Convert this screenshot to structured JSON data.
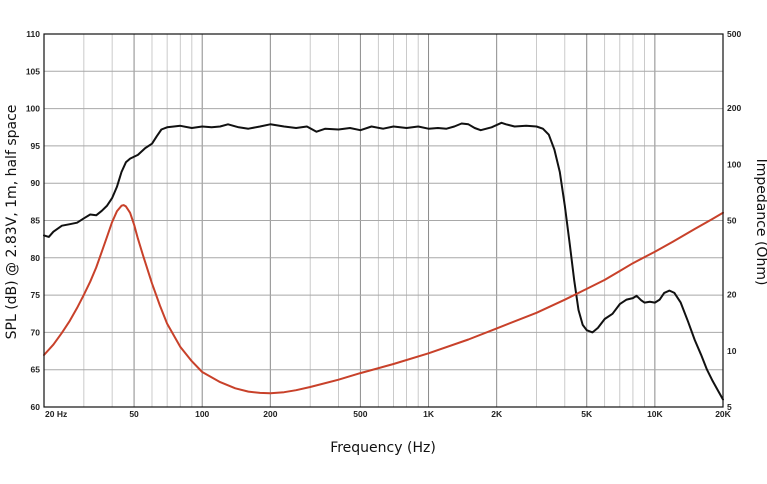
{
  "chart_data": {
    "type": "line",
    "title": "",
    "xlabel": "Frequency (Hz)",
    "ylabel": "SPL (dB) @ 2.83V, 1m, half space",
    "y2label": "Impedance (Ohm)",
    "xscale": "log",
    "xlim": [
      20,
      20000
    ],
    "ylim": [
      60,
      110
    ],
    "y2scale": "log",
    "y2lim": [
      5,
      500
    ],
    "grid": true,
    "legend": "none",
    "x_tick_values": [
      20,
      50,
      100,
      200,
      500,
      1000,
      2000,
      5000,
      10000,
      20000
    ],
    "x_tick_labels": [
      "20  Hz",
      "50",
      "100",
      "200",
      "500",
      "1K",
      "2K",
      "5K",
      "10K",
      "20K"
    ],
    "y_tick_values": [
      60,
      65,
      70,
      75,
      80,
      85,
      90,
      95,
      100,
      105,
      110
    ],
    "y_tick_labels": [
      "60",
      "65",
      "70",
      "75",
      "80",
      "85",
      "90",
      "95",
      "100",
      "105",
      "110"
    ],
    "y2_tick_values": [
      5,
      10,
      20,
      50,
      100,
      200,
      500
    ],
    "y2_tick_labels": [
      "5",
      "10",
      "20",
      "50",
      "100",
      "200",
      "500"
    ],
    "series": [
      {
        "axis": "left",
        "color": "#111111",
        "points": [
          [
            20,
            83.0
          ],
          [
            21,
            82.8
          ],
          [
            22,
            83.5
          ],
          [
            24,
            84.3
          ],
          [
            26,
            84.5
          ],
          [
            28,
            84.7
          ],
          [
            30,
            85.3
          ],
          [
            32,
            85.8
          ],
          [
            34,
            85.7
          ],
          [
            36,
            86.3
          ],
          [
            38,
            87.0
          ],
          [
            40,
            88.0
          ],
          [
            42,
            89.5
          ],
          [
            44,
            91.5
          ],
          [
            46,
            92.8
          ],
          [
            48,
            93.3
          ],
          [
            52,
            93.8
          ],
          [
            56,
            94.7
          ],
          [
            60,
            95.3
          ],
          [
            63,
            96.3
          ],
          [
            66,
            97.2
          ],
          [
            70,
            97.5
          ],
          [
            75,
            97.6
          ],
          [
            80,
            97.7
          ],
          [
            90,
            97.4
          ],
          [
            100,
            97.6
          ],
          [
            110,
            97.5
          ],
          [
            120,
            97.6
          ],
          [
            130,
            97.9
          ],
          [
            145,
            97.5
          ],
          [
            160,
            97.3
          ],
          [
            180,
            97.6
          ],
          [
            200,
            97.9
          ],
          [
            230,
            97.6
          ],
          [
            260,
            97.4
          ],
          [
            290,
            97.6
          ],
          [
            320,
            96.9
          ],
          [
            350,
            97.3
          ],
          [
            400,
            97.2
          ],
          [
            450,
            97.4
          ],
          [
            500,
            97.1
          ],
          [
            560,
            97.6
          ],
          [
            630,
            97.3
          ],
          [
            700,
            97.6
          ],
          [
            800,
            97.4
          ],
          [
            900,
            97.6
          ],
          [
            1000,
            97.3
          ],
          [
            1100,
            97.4
          ],
          [
            1200,
            97.3
          ],
          [
            1300,
            97.6
          ],
          [
            1400,
            98.0
          ],
          [
            1500,
            97.9
          ],
          [
            1600,
            97.4
          ],
          [
            1700,
            97.1
          ],
          [
            1900,
            97.5
          ],
          [
            2100,
            98.1
          ],
          [
            2200,
            97.9
          ],
          [
            2400,
            97.6
          ],
          [
            2700,
            97.7
          ],
          [
            3000,
            97.6
          ],
          [
            3200,
            97.3
          ],
          [
            3400,
            96.5
          ],
          [
            3600,
            94.5
          ],
          [
            3800,
            91.5
          ],
          [
            4000,
            87.0
          ],
          [
            4200,
            82.0
          ],
          [
            4400,
            77.0
          ],
          [
            4600,
            73.0
          ],
          [
            4800,
            71.0
          ],
          [
            5000,
            70.3
          ],
          [
            5300,
            70.0
          ],
          [
            5600,
            70.6
          ],
          [
            6000,
            71.8
          ],
          [
            6500,
            72.5
          ],
          [
            7000,
            73.8
          ],
          [
            7500,
            74.4
          ],
          [
            8000,
            74.6
          ],
          [
            8300,
            74.9
          ],
          [
            8700,
            74.3
          ],
          [
            9000,
            74.0
          ],
          [
            9500,
            74.1
          ],
          [
            10000,
            74.0
          ],
          [
            10500,
            74.4
          ],
          [
            11000,
            75.3
          ],
          [
            11600,
            75.6
          ],
          [
            12200,
            75.3
          ],
          [
            13000,
            74.0
          ],
          [
            14000,
            71.5
          ],
          [
            15000,
            69.0
          ],
          [
            16000,
            67.0
          ],
          [
            17000,
            65.0
          ],
          [
            18000,
            63.5
          ],
          [
            19000,
            62.2
          ],
          [
            20000,
            61.0
          ]
        ]
      },
      {
        "axis": "right",
        "color": "#c8412a",
        "points": [
          [
            20,
            9.5
          ],
          [
            22,
            10.8
          ],
          [
            24,
            12.5
          ],
          [
            26,
            14.5
          ],
          [
            28,
            17.0
          ],
          [
            30,
            20.0
          ],
          [
            32,
            23.5
          ],
          [
            34,
            28.0
          ],
          [
            36,
            34.0
          ],
          [
            38,
            41.0
          ],
          [
            40,
            49.0
          ],
          [
            42,
            56.0
          ],
          [
            44,
            60.0
          ],
          [
            45,
            60.5
          ],
          [
            46,
            59.5
          ],
          [
            48,
            55.0
          ],
          [
            50,
            47.5
          ],
          [
            52,
            40.0
          ],
          [
            55,
            32.0
          ],
          [
            60,
            23.0
          ],
          [
            65,
            17.5
          ],
          [
            70,
            14.0
          ],
          [
            80,
            10.5
          ],
          [
            90,
            8.8
          ],
          [
            100,
            7.7
          ],
          [
            120,
            6.8
          ],
          [
            140,
            6.3
          ],
          [
            160,
            6.05
          ],
          [
            180,
            5.95
          ],
          [
            200,
            5.92
          ],
          [
            230,
            6.0
          ],
          [
            260,
            6.15
          ],
          [
            300,
            6.4
          ],
          [
            400,
            7.0
          ],
          [
            500,
            7.6
          ],
          [
            700,
            8.5
          ],
          [
            1000,
            9.7
          ],
          [
            1500,
            11.5
          ],
          [
            2000,
            13.2
          ],
          [
            3000,
            16.0
          ],
          [
            4000,
            18.8
          ],
          [
            5000,
            21.5
          ],
          [
            6000,
            24.0
          ],
          [
            7000,
            26.8
          ],
          [
            8000,
            29.5
          ],
          [
            10000,
            34.0
          ],
          [
            12000,
            38.5
          ],
          [
            15000,
            45.0
          ],
          [
            18000,
            51.0
          ],
          [
            20000,
            55.0
          ]
        ]
      }
    ]
  }
}
